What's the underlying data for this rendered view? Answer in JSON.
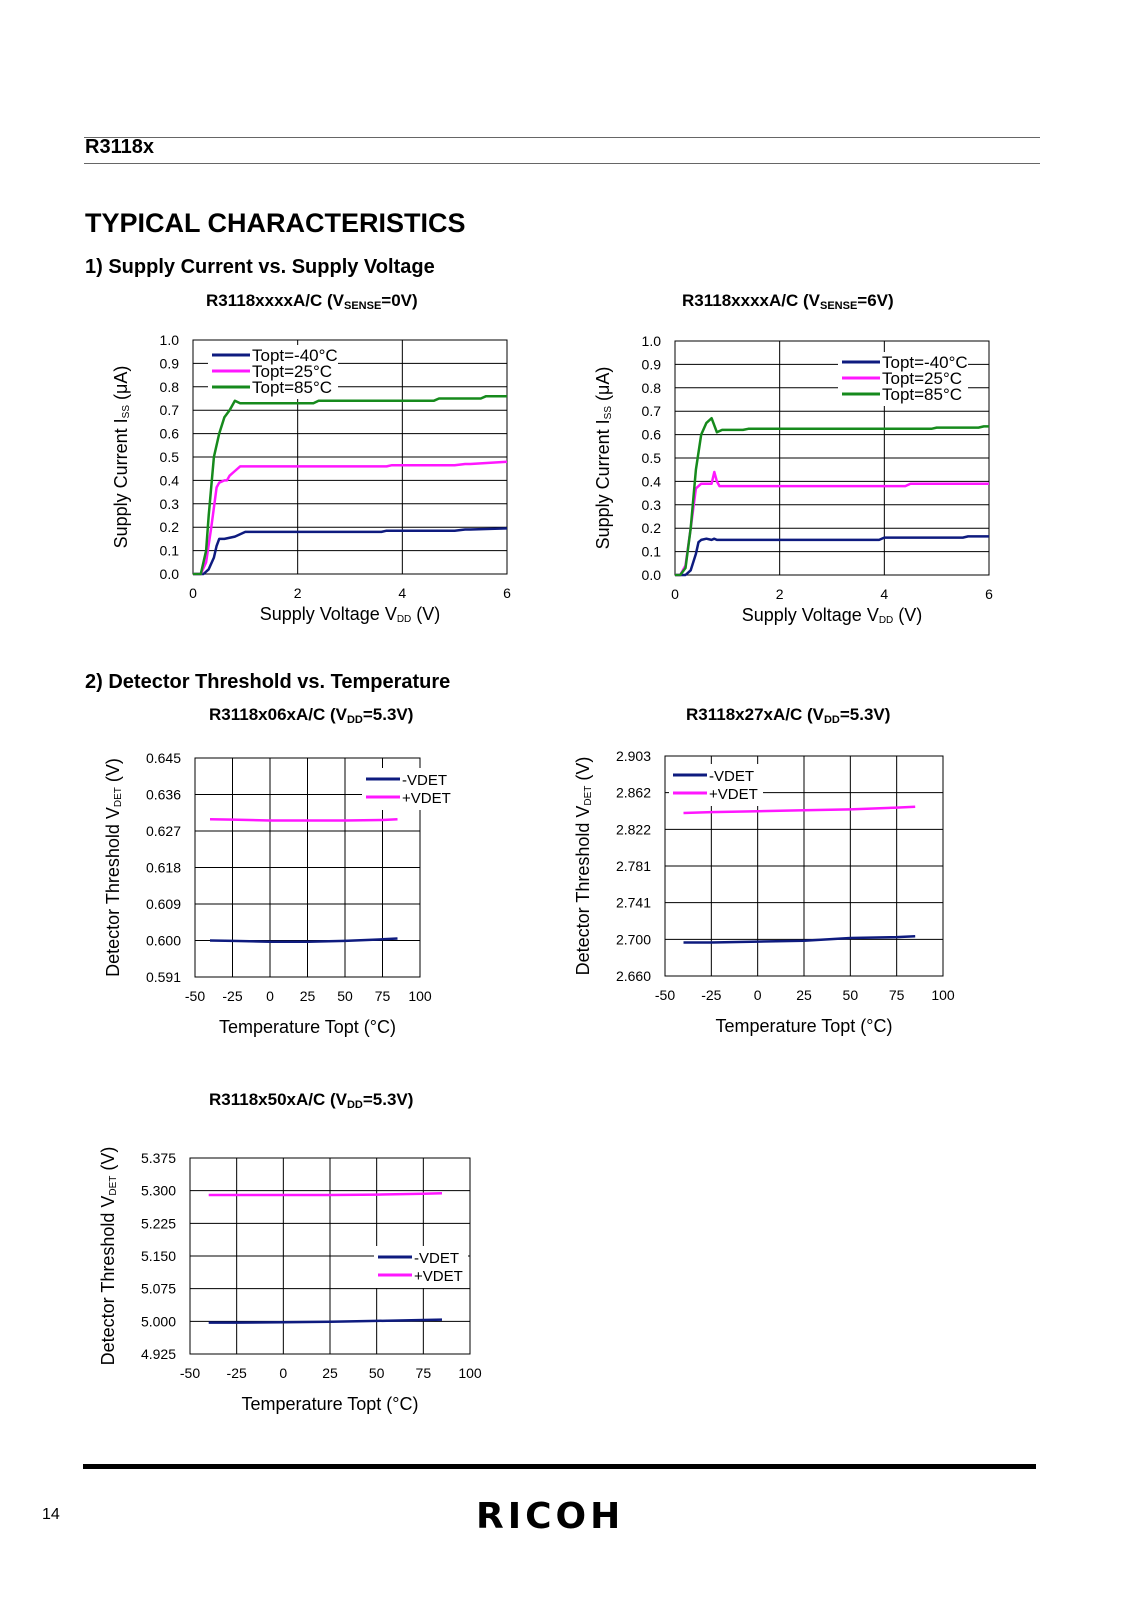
{
  "header": {
    "product": "R3118x"
  },
  "page": {
    "title": "TYPICAL CHARACTERISTICS",
    "number": "14",
    "logo": "RICOH"
  },
  "sections": [
    {
      "title": "1)  Supply Current vs. Supply Voltage"
    },
    {
      "title": "2) Detector Threshold vs. Temperature"
    }
  ],
  "colors": {
    "navy": "#0e1b7f",
    "magenta": "#ff17ff",
    "green": "#168a1c",
    "grid": "#000000"
  },
  "charts": [
    {
      "title_main": "R3118xxxxA/C (V",
      "title_sub": "SENSE",
      "title_end": "=0V)",
      "chart_data": {
        "type": "line",
        "xlabel_main": "Supply Voltage V",
        "xlabel_sub": "DD",
        "xlabel_end": " (V)",
        "ylabel_main": "Supply Current I",
        "ylabel_sub": "SS",
        "ylabel_end": " (μA)",
        "xlim": [
          0,
          6
        ],
        "ylim": [
          0,
          1.0
        ],
        "xticks": [
          "0",
          "2",
          "4",
          "6"
        ],
        "yticks": [
          "0.0",
          "0.1",
          "0.2",
          "0.3",
          "0.4",
          "0.5",
          "0.6",
          "0.7",
          "0.8",
          "0.9",
          "1.0"
        ],
        "grid": true,
        "legend": "top-left",
        "series": [
          {
            "name": "Topt=-40°C",
            "color": "navy",
            "x": [
              0,
              0.2,
              0.3,
              0.4,
              0.45,
              0.5,
              0.6,
              0.8,
              1.0,
              1.5,
              2,
              3,
              3.6,
              3.7,
              4,
              5,
              5.2,
              5.3,
              6
            ],
            "y": [
              0,
              0,
              0.02,
              0.07,
              0.12,
              0.15,
              0.15,
              0.16,
              0.18,
              0.18,
              0.18,
              0.18,
              0.18,
              0.185,
              0.185,
              0.185,
              0.19,
              0.19,
              0.195
            ]
          },
          {
            "name": "Topt=25°C",
            "color": "magenta",
            "x": [
              0,
              0.15,
              0.25,
              0.35,
              0.45,
              0.5,
              0.6,
              0.65,
              0.7,
              0.8,
              0.9,
              1.0,
              2,
              3,
              3.7,
              3.8,
              5,
              5.2,
              5.3,
              6
            ],
            "y": [
              0,
              0,
              0.05,
              0.2,
              0.37,
              0.39,
              0.4,
              0.4,
              0.42,
              0.44,
              0.46,
              0.46,
              0.46,
              0.46,
              0.46,
              0.465,
              0.465,
              0.47,
              0.47,
              0.48
            ]
          },
          {
            "name": "Topt=85°C",
            "color": "green",
            "x": [
              0,
              0.15,
              0.25,
              0.3,
              0.4,
              0.5,
              0.6,
              0.7,
              0.8,
              0.9,
              1.0,
              2,
              2.3,
              2.4,
              4,
              4.6,
              4.7,
              5.5,
              5.6,
              6
            ],
            "y": [
              0,
              0,
              0.1,
              0.25,
              0.5,
              0.6,
              0.67,
              0.7,
              0.74,
              0.73,
              0.73,
              0.73,
              0.73,
              0.74,
              0.74,
              0.74,
              0.75,
              0.75,
              0.76,
              0.76
            ]
          }
        ]
      }
    },
    {
      "title_main": "R3118xxxxA/C (V",
      "title_sub": "SENSE",
      "title_end": "=6V)",
      "chart_data": {
        "type": "line",
        "xlabel_main": "Supply Voltage V",
        "xlabel_sub": "DD",
        "xlabel_end": " (V)",
        "ylabel_main": "Supply Current I",
        "ylabel_sub": "SS",
        "ylabel_end": " (μA)",
        "xlim": [
          0,
          6
        ],
        "ylim": [
          0,
          1.0
        ],
        "xticks": [
          "0",
          "2",
          "4",
          "6"
        ],
        "yticks": [
          "0.0",
          "0.1",
          "0.2",
          "0.3",
          "0.4",
          "0.5",
          "0.6",
          "0.7",
          "0.8",
          "0.9",
          "1.0"
        ],
        "grid": true,
        "legend": "top-right",
        "series": [
          {
            "name": "Topt=-40°C",
            "color": "navy",
            "x": [
              0,
              0.2,
              0.3,
              0.4,
              0.45,
              0.5,
              0.6,
              0.7,
              0.75,
              0.8,
              1,
              2,
              3,
              3.9,
              4,
              5.5,
              5.6,
              6
            ],
            "y": [
              0,
              0,
              0.02,
              0.09,
              0.14,
              0.15,
              0.155,
              0.15,
              0.155,
              0.15,
              0.15,
              0.15,
              0.15,
              0.15,
              0.16,
              0.16,
              0.165,
              0.165
            ]
          },
          {
            "name": "Topt=25°C",
            "color": "magenta",
            "x": [
              0,
              0.1,
              0.2,
              0.3,
              0.4,
              0.5,
              0.6,
              0.7,
              0.75,
              0.8,
              0.85,
              0.9,
              1,
              2,
              3,
              4.4,
              4.5,
              6
            ],
            "y": [
              0,
              0,
              0.04,
              0.2,
              0.37,
              0.39,
              0.39,
              0.39,
              0.44,
              0.4,
              0.38,
              0.38,
              0.38,
              0.38,
              0.38,
              0.38,
              0.39,
              0.39
            ]
          },
          {
            "name": "Topt=85°C",
            "color": "green",
            "x": [
              0,
              0.1,
              0.2,
              0.3,
              0.4,
              0.5,
              0.6,
              0.7,
              0.8,
              0.9,
              1.3,
              1.4,
              3,
              4.9,
              5.0,
              5.8,
              5.9,
              6
            ],
            "y": [
              0,
              0,
              0.03,
              0.2,
              0.45,
              0.6,
              0.65,
              0.67,
              0.61,
              0.62,
              0.62,
              0.625,
              0.625,
              0.625,
              0.63,
              0.63,
              0.635,
              0.635
            ]
          }
        ]
      }
    },
    {
      "title_main": "R3118x06xA/C (V",
      "title_sub": "DD",
      "title_end": "=5.3V)",
      "chart_data": {
        "type": "line",
        "xlabel_main": "Temperature Topt (°C)",
        "xlabel_sub": "",
        "xlabel_end": "",
        "ylabel_main": "Detector Threshold V",
        "ylabel_sub": "DET",
        "ylabel_end": " (V)",
        "xlim": [
          -50,
          100
        ],
        "ylim": [
          0.591,
          0.645
        ],
        "xticks": [
          "-50",
          "-25",
          "0",
          "25",
          "50",
          "75",
          "100"
        ],
        "yticks": [
          "0.591",
          "0.600",
          "0.609",
          "0.618",
          "0.627",
          "0.636",
          "0.645"
        ],
        "grid": true,
        "legend": "top-right",
        "series": [
          {
            "name": "-VDET",
            "color": "navy",
            "x": [
              -40,
              -25,
              0,
              25,
              50,
              75,
              85
            ],
            "y": [
              0.6,
              0.5999,
              0.5997,
              0.5997,
              0.5999,
              0.6003,
              0.6005
            ]
          },
          {
            "name": "+VDET",
            "color": "magenta",
            "x": [
              -40,
              -25,
              0,
              25,
              50,
              75,
              85
            ],
            "y": [
              0.6299,
              0.6298,
              0.6296,
              0.6296,
              0.6296,
              0.6297,
              0.6299
            ]
          }
        ]
      }
    },
    {
      "title_main": "R3118x27xA/C (V",
      "title_sub": "DD",
      "title_end": "=5.3V)",
      "chart_data": {
        "type": "line",
        "xlabel_main": "Temperature Topt (°C)",
        "xlabel_sub": "",
        "xlabel_end": "",
        "ylabel_main": "Detector Threshold V",
        "ylabel_sub": "DET",
        "ylabel_end": " (V)",
        "xlim": [
          -50,
          100
        ],
        "ylim": [
          2.66,
          2.903
        ],
        "xticks": [
          "-50",
          "-25",
          "0",
          "25",
          "50",
          "75",
          "100"
        ],
        "yticks": [
          "2.660",
          "2.700",
          "2.741",
          "2.781",
          "2.822",
          "2.862",
          "2.903"
        ],
        "grid": true,
        "legend": "top-left",
        "series": [
          {
            "name": "-VDET",
            "color": "navy",
            "x": [
              -40,
              -25,
              0,
              25,
              50,
              75,
              85
            ],
            "y": [
              2.697,
              2.697,
              2.698,
              2.699,
              2.702,
              2.703,
              2.704
            ]
          },
          {
            "name": "+VDET",
            "color": "magenta",
            "x": [
              -40,
              -25,
              0,
              25,
              50,
              75,
              85
            ],
            "y": [
              2.84,
              2.841,
              2.842,
              2.843,
              2.844,
              2.846,
              2.847
            ]
          }
        ]
      }
    },
    {
      "title_main": "R3118x50xA/C (V",
      "title_sub": "DD",
      "title_end": "=5.3V)",
      "chart_data": {
        "type": "line",
        "xlabel_main": "Temperature Topt (°C)",
        "xlabel_sub": "",
        "xlabel_end": "",
        "ylabel_main": "Detector Threshold V",
        "ylabel_sub": "DET",
        "ylabel_end": " (V)",
        "xlim": [
          -50,
          100
        ],
        "ylim": [
          4.925,
          5.375
        ],
        "xticks": [
          "-50",
          "-25",
          "0",
          "25",
          "50",
          "75",
          "100"
        ],
        "yticks": [
          "4.925",
          "5.000",
          "5.075",
          "5.150",
          "5.225",
          "5.300",
          "5.375"
        ],
        "grid": true,
        "legend": "middle-right",
        "series": [
          {
            "name": "-VDET",
            "color": "navy",
            "x": [
              -40,
              -25,
              0,
              25,
              50,
              75,
              85
            ],
            "y": [
              4.997,
              4.997,
              4.998,
              4.999,
              5.001,
              5.003,
              5.004
            ]
          },
          {
            "name": "+VDET",
            "color": "magenta",
            "x": [
              -40,
              -25,
              0,
              25,
              50,
              75,
              85
            ],
            "y": [
              5.29,
              5.29,
              5.29,
              5.29,
              5.291,
              5.293,
              5.294
            ]
          }
        ]
      }
    }
  ]
}
